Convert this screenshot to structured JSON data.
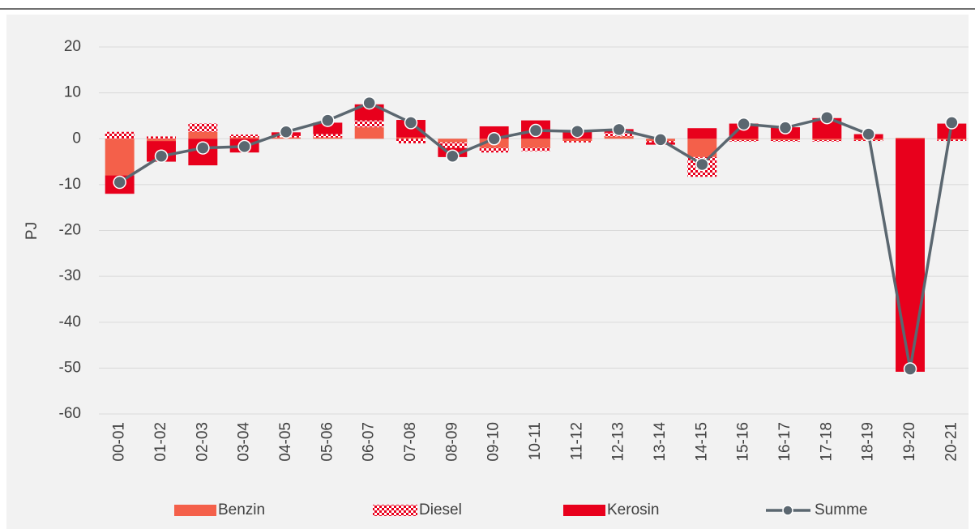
{
  "chart_data": {
    "type": "stacked-bar-line",
    "y_label": "PJ",
    "categories": [
      "00-01",
      "01-02",
      "02-03",
      "03-04",
      "04-05",
      "05-06",
      "06-07",
      "07-08",
      "08-09",
      "09-10",
      "10-11",
      "11-12",
      "12-13",
      "13-14",
      "14-15",
      "15-16",
      "16-17",
      "17-18",
      "18-19",
      "19-20",
      "20-21"
    ],
    "series": [
      {
        "name": "Benzin",
        "color": "#f4604a",
        "kind": "bar",
        "values": [
          -8,
          -0.5,
          1.5,
          0.3,
          0.3,
          0.3,
          2.5,
          0.3,
          -0.8,
          -2,
          -2,
          -0.5,
          0.5,
          -0.5,
          -4,
          -0.3,
          -0.3,
          -0.3,
          -0.3,
          0.2,
          -0.2
        ]
      },
      {
        "name": "Diesel",
        "color": "#e8001c",
        "kind": "bar",
        "pattern": "checker",
        "values": [
          1.5,
          0.5,
          1.8,
          0.6,
          0.3,
          0.7,
          1.5,
          -1,
          -1.2,
          -1,
          -0.7,
          -0.3,
          0.8,
          -0.3,
          -4.3,
          -0.3,
          -0.3,
          -0.3,
          -0.2,
          0,
          -0.3
        ]
      },
      {
        "name": "Kerosin",
        "color": "#e8001c",
        "kind": "bar",
        "values": [
          -4,
          -4.5,
          -5.8,
          -3,
          0.8,
          2.5,
          3.5,
          3.8,
          -2,
          2.7,
          4,
          1.5,
          0.8,
          -0.5,
          2.3,
          3.3,
          2.5,
          4.5,
          1,
          -50.8,
          3.3
        ]
      },
      {
        "name": "Summe",
        "color": "#5b6770",
        "kind": "line",
        "values": [
          -9.5,
          -3.8,
          -2,
          -1.7,
          1.5,
          4,
          7.8,
          3.5,
          -3.8,
          0,
          1.8,
          1.6,
          2,
          -0.2,
          -5.6,
          3.2,
          2.4,
          4.6,
          1,
          -50.2,
          3.5
        ]
      }
    ],
    "ylim": [
      -60,
      20
    ],
    "yticks": [
      -60,
      -50,
      -40,
      -30,
      -20,
      -10,
      0,
      10,
      20
    ],
    "grid": true
  }
}
